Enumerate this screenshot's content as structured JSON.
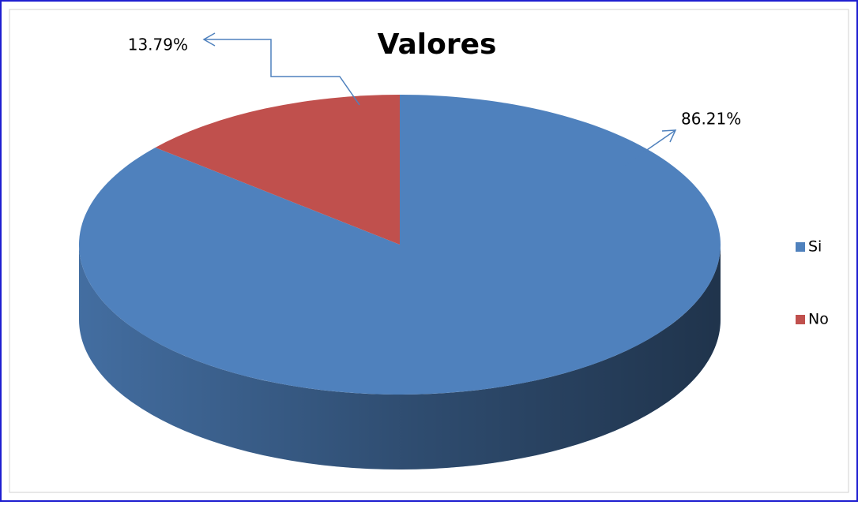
{
  "chart_data": {
    "type": "pie",
    "title": "Valores",
    "categories": [
      "Si",
      "No"
    ],
    "values": [
      86.21,
      13.79
    ],
    "value_labels": [
      "86.21%",
      "13.79%"
    ],
    "colors": [
      "#4f81bd",
      "#c0504d"
    ],
    "legend": "right"
  }
}
